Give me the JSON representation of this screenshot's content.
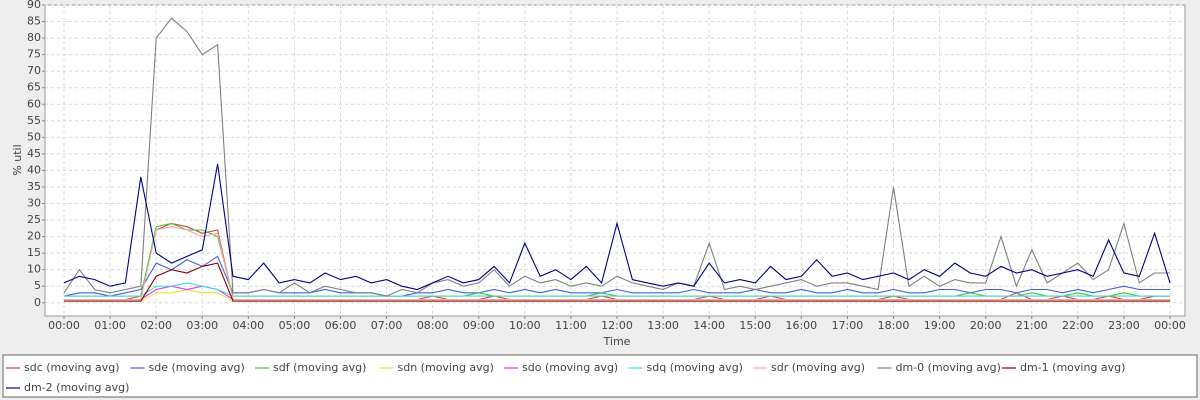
{
  "chart_data": {
    "type": "line",
    "x_label": "Time",
    "y_label": "% util",
    "x": [
      "00:00",
      "00:20",
      "00:40",
      "01:00",
      "01:20",
      "01:40",
      "02:00",
      "02:20",
      "02:40",
      "03:00",
      "03:20",
      "03:40",
      "04:00",
      "04:20",
      "04:40",
      "05:00",
      "05:20",
      "05:40",
      "06:00",
      "06:20",
      "06:40",
      "07:00",
      "07:20",
      "07:40",
      "08:00",
      "08:20",
      "08:40",
      "09:00",
      "09:20",
      "09:40",
      "10:00",
      "10:20",
      "10:40",
      "11:00",
      "11:20",
      "11:40",
      "12:00",
      "12:20",
      "12:40",
      "13:00",
      "13:20",
      "13:40",
      "14:00",
      "14:20",
      "14:40",
      "15:00",
      "15:20",
      "15:40",
      "16:00",
      "16:20",
      "16:40",
      "17:00",
      "17:20",
      "17:40",
      "18:00",
      "18:20",
      "18:40",
      "19:00",
      "19:20",
      "19:40",
      "20:00",
      "20:20",
      "20:40",
      "21:00",
      "21:20",
      "21:40",
      "22:00",
      "22:20",
      "22:40",
      "23:00",
      "23:20",
      "23:40",
      "00:00"
    ],
    "xticks": [
      "00:00",
      "01:00",
      "02:00",
      "03:00",
      "04:00",
      "05:00",
      "06:00",
      "07:00",
      "08:00",
      "09:00",
      "10:00",
      "11:00",
      "12:00",
      "13:00",
      "14:00",
      "15:00",
      "16:00",
      "17:00",
      "18:00",
      "19:00",
      "20:00",
      "21:00",
      "22:00",
      "23:00",
      "00:00"
    ],
    "ylim": [
      -4,
      90
    ],
    "yticks": [
      0,
      5,
      10,
      15,
      20,
      25,
      30,
      35,
      40,
      45,
      50,
      55,
      60,
      65,
      70,
      75,
      80,
      85,
      90
    ],
    "grid": true,
    "series": [
      {
        "name": "sdc (moving avg)",
        "color": "#e03c3c",
        "values": [
          1,
          1,
          1,
          1,
          1,
          2,
          22,
          24,
          23,
          21,
          22,
          1,
          1,
          1,
          1,
          1,
          1,
          1,
          1,
          1,
          1,
          1,
          1,
          1,
          2,
          1,
          1,
          1,
          2,
          1,
          1,
          1,
          1,
          1,
          1,
          2,
          1,
          1,
          1,
          1,
          1,
          1,
          2,
          1,
          1,
          1,
          2,
          1,
          1,
          1,
          1,
          1,
          1,
          1,
          2,
          1,
          1,
          1,
          1,
          1,
          1,
          1,
          3,
          1,
          1,
          2,
          1,
          1,
          2,
          1,
          1,
          2,
          2
        ]
      },
      {
        "name": "sde (moving avg)",
        "color": "#4460dd",
        "values": [
          2,
          3,
          3,
          2,
          3,
          4,
          12,
          10,
          13,
          11,
          14,
          3,
          3,
          4,
          3,
          3,
          3,
          4,
          3,
          3,
          3,
          2,
          2,
          3,
          3,
          4,
          3,
          3,
          4,
          3,
          4,
          3,
          4,
          3,
          3,
          3,
          4,
          3,
          3,
          3,
          3,
          4,
          3,
          3,
          3,
          4,
          3,
          3,
          4,
          3,
          3,
          4,
          3,
          3,
          4,
          3,
          3,
          4,
          4,
          3,
          4,
          4,
          3,
          4,
          4,
          3,
          4,
          3,
          4,
          5,
          4,
          4,
          4
        ]
      },
      {
        "name": "sdf (moving avg)",
        "color": "#3ccc3c",
        "values": [
          2,
          2,
          2,
          2,
          2,
          2,
          23,
          24,
          22,
          22,
          20,
          2,
          2,
          2,
          2,
          2,
          2,
          2,
          2,
          2,
          2,
          2,
          2,
          2,
          2,
          2,
          2,
          3,
          2,
          2,
          2,
          2,
          2,
          2,
          2,
          3,
          2,
          2,
          2,
          2,
          2,
          2,
          2,
          2,
          2,
          2,
          2,
          2,
          2,
          2,
          2,
          2,
          2,
          2,
          2,
          2,
          2,
          2,
          2,
          3,
          2,
          2,
          2,
          3,
          2,
          2,
          3,
          2,
          2,
          3,
          2,
          2,
          2
        ]
      },
      {
        "name": "sdn (moving avg)",
        "color": "#e6e03c",
        "values": [
          0.5,
          0.5,
          0.5,
          0.5,
          0.5,
          0.5,
          3,
          3,
          4,
          3,
          3,
          0.5,
          0.5,
          0.5,
          0.5,
          0.5,
          0.5,
          0.5,
          0.5,
          0.5,
          0.5,
          0.5,
          0.5,
          0.5,
          0.5,
          0.5,
          0.5,
          0.5,
          0.5,
          0.5,
          0.5,
          0.5,
          0.5,
          0.5,
          0.5,
          0.5,
          0.5,
          0.5,
          0.5,
          0.5,
          0.5,
          0.5,
          0.5,
          0.5,
          0.5,
          0.5,
          0.5,
          0.5,
          0.5,
          0.5,
          0.5,
          0.5,
          0.5,
          0.5,
          0.5,
          0.5,
          0.5,
          0.5,
          0.5,
          0.5,
          0.5,
          0.5,
          0.5,
          0.5,
          0.5,
          0.5,
          0.5,
          0.5,
          0.5,
          0.5,
          0.5,
          0.5,
          0.5
        ]
      },
      {
        "name": "sdo (moving avg)",
        "color": "#dd3cdd",
        "values": [
          1,
          1,
          1,
          1,
          1,
          1,
          4,
          5,
          4,
          5,
          4,
          1,
          1,
          1,
          1,
          1,
          1,
          1,
          1,
          1,
          1,
          1,
          1,
          1,
          1,
          1,
          1,
          1,
          1,
          1,
          1,
          1,
          1,
          1,
          1,
          1,
          1,
          1,
          1,
          1,
          1,
          1,
          1,
          1,
          1,
          1,
          1,
          1,
          1,
          1,
          1,
          1,
          1,
          1,
          1,
          1,
          1,
          1,
          1,
          1,
          1,
          1,
          1,
          1,
          1,
          1,
          1,
          1,
          1,
          1,
          1,
          1,
          1
        ]
      },
      {
        "name": "sdq (moving avg)",
        "color": "#3cdde0",
        "values": [
          2,
          2,
          2,
          2,
          2,
          2,
          5,
          5,
          6,
          5,
          4,
          2,
          2,
          2,
          2,
          2,
          2,
          2,
          2,
          2,
          2,
          2,
          2,
          2,
          2,
          2,
          2,
          2,
          2,
          2,
          2,
          2,
          2,
          2,
          2,
          2,
          2,
          2,
          2,
          2,
          2,
          2,
          2,
          2,
          2,
          2,
          2,
          2,
          2,
          2,
          2,
          2,
          2,
          2,
          2,
          2,
          2,
          2,
          2,
          2,
          2,
          2,
          2,
          2,
          2,
          2,
          2,
          2,
          2,
          2,
          2,
          2,
          2
        ]
      },
      {
        "name": "sdr (moving avg)",
        "color": "#f2a8a8",
        "values": [
          1,
          1,
          1,
          1,
          1,
          1,
          22,
          23,
          22,
          20,
          21,
          1,
          1,
          1,
          1,
          1,
          1,
          1,
          1,
          1,
          1,
          1,
          1,
          1,
          1,
          1,
          1,
          1,
          1,
          1,
          1,
          1,
          1,
          1,
          1,
          1,
          1,
          1,
          1,
          1,
          1,
          1,
          1,
          1,
          1,
          1,
          1,
          1,
          1,
          1,
          1,
          1,
          1,
          1,
          1,
          1,
          1,
          1,
          1,
          1,
          1,
          1,
          1,
          1,
          1,
          1,
          1,
          1,
          1,
          1,
          1,
          1,
          1
        ]
      },
      {
        "name": "dm-0 (moving avg)",
        "color": "#808080",
        "values": [
          3,
          10,
          4,
          3,
          4,
          5,
          80,
          86,
          82,
          75,
          78,
          3,
          3,
          4,
          3,
          6,
          3,
          5,
          4,
          3,
          3,
          2,
          4,
          3,
          6,
          7,
          5,
          6,
          10,
          5,
          8,
          6,
          7,
          5,
          6,
          5,
          8,
          6,
          5,
          4,
          6,
          5,
          18,
          4,
          5,
          4,
          5,
          6,
          7,
          5,
          6,
          6,
          5,
          4,
          35,
          5,
          8,
          5,
          7,
          6,
          6,
          20,
          5,
          16,
          6,
          9,
          12,
          7,
          10,
          24,
          6,
          9,
          9
        ]
      },
      {
        "name": "dm-1 (moving avg)",
        "color": "#8b0000",
        "values": [
          0.5,
          0.5,
          0.5,
          0.5,
          0.5,
          0.5,
          8,
          10,
          9,
          11,
          12,
          0.5,
          0.5,
          0.5,
          0.5,
          0.5,
          0.5,
          0.5,
          0.5,
          0.5,
          0.5,
          0.5,
          0.5,
          0.5,
          0.5,
          0.5,
          0.5,
          0.5,
          0.5,
          0.5,
          0.5,
          0.5,
          0.5,
          0.5,
          0.5,
          0.5,
          0.5,
          0.5,
          0.5,
          0.5,
          0.5,
          0.5,
          0.5,
          0.5,
          0.5,
          0.5,
          0.5,
          0.5,
          0.5,
          0.5,
          0.5,
          0.5,
          0.5,
          0.5,
          0.5,
          0.5,
          0.5,
          0.5,
          0.5,
          0.5,
          0.5,
          0.5,
          0.5,
          0.5,
          0.5,
          0.5,
          0.5,
          0.5,
          0.5,
          0.5,
          0.5,
          0.5,
          0.5
        ]
      },
      {
        "name": "dm-2 (moving avg)",
        "color": "#00008b",
        "values": [
          6,
          8,
          7,
          5,
          6,
          38,
          15,
          12,
          14,
          16,
          42,
          8,
          7,
          12,
          6,
          7,
          6,
          9,
          7,
          8,
          6,
          7,
          5,
          4,
          6,
          8,
          6,
          7,
          11,
          6,
          18,
          8,
          10,
          7,
          11,
          6,
          24,
          7,
          6,
          5,
          6,
          5,
          12,
          6,
          7,
          6,
          11,
          7,
          8,
          13,
          8,
          9,
          7,
          8,
          9,
          7,
          10,
          8,
          12,
          9,
          8,
          11,
          9,
          10,
          8,
          9,
          10,
          8,
          19,
          9,
          8,
          21,
          6
        ]
      }
    ]
  }
}
